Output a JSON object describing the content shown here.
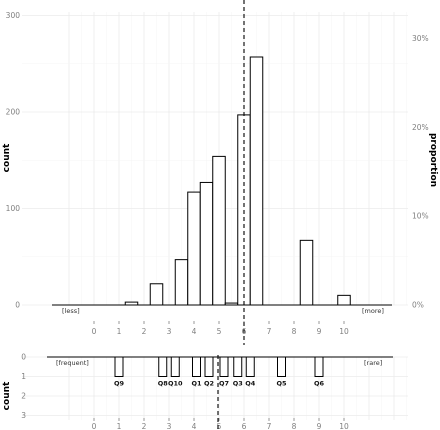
{
  "chart_data": [
    {
      "type": "bar",
      "ylabel": "count",
      "y2label": "proportion",
      "y_ticks": [
        "0",
        "100",
        "200",
        "300"
      ],
      "y2_ticks": [
        "0%",
        "10%",
        "20%",
        "30%"
      ],
      "x_ticks": [
        "0",
        "1",
        "2",
        "3",
        "4",
        "5",
        "6",
        "7",
        "8",
        "9",
        "10"
      ],
      "ylim": [
        0,
        310
      ],
      "xlim": [
        -1.8,
        12
      ],
      "x": [
        1.5,
        2.5,
        3.5,
        4,
        4.5,
        5,
        5.5,
        6,
        6.5,
        7,
        8.5,
        10
      ],
      "values": [
        3,
        22,
        47,
        117,
        127,
        154,
        2,
        197,
        257,
        0,
        67,
        10
      ],
      "marker_x": 6,
      "left_note": "[less]",
      "right_note": "[more]",
      "grid": true
    },
    {
      "type": "bar",
      "ylabel": "",
      "y_ticks": [
        "0",
        "1",
        "2",
        "3"
      ],
      "x_ticks": [
        "0",
        "1",
        "2",
        "3",
        "4",
        "5",
        "6",
        "7",
        "8",
        "9",
        "10"
      ],
      "ylim": [
        0,
        3.2
      ],
      "y_reversed": true,
      "items": [
        {
          "label": "Q9",
          "x": 1,
          "value": 1
        },
        {
          "label": "Q8",
          "x": 2.75,
          "value": 1
        },
        {
          "label": "Q10",
          "x": 3.25,
          "value": 1
        },
        {
          "label": "Q1",
          "x": 4.1,
          "value": 1
        },
        {
          "label": "Q2",
          "x": 4.6,
          "value": 1
        },
        {
          "label": "Q7",
          "x": 5.2,
          "value": 1
        },
        {
          "label": "Q3",
          "x": 5.75,
          "value": 1
        },
        {
          "label": "Q4",
          "x": 6.25,
          "value": 1
        },
        {
          "label": "Q5",
          "x": 7.5,
          "value": 1
        },
        {
          "label": "Q6",
          "x": 9,
          "value": 1
        }
      ],
      "marker_x": 5,
      "left_note": "[frequent]",
      "right_note": "[rare]",
      "ylabel_text": "count",
      "grid": true
    }
  ]
}
